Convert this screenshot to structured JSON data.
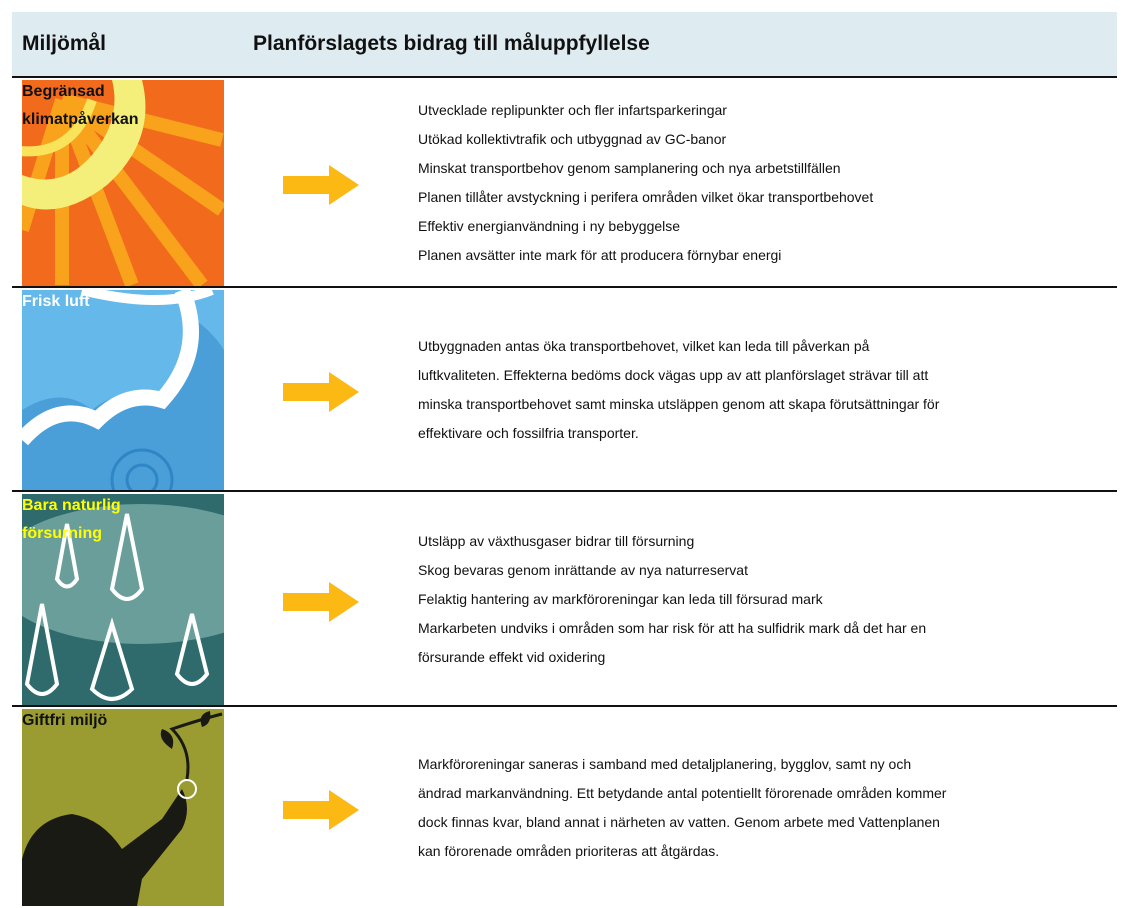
{
  "header": {
    "col1": "Miljömål",
    "col2": "Planförslagets bidrag till måluppfyllelse"
  },
  "rows": [
    {
      "goal": "Begränsad klimatpåverkan",
      "lines": [
        "Utvecklade replipunkter och fler infartsparkeringar",
        "Utökad kollektivtrafik och utbyggnad av GC-banor",
        "Minskat transportbehov genom samplanering och nya arbetstillfällen",
        "Planen tillåter avstyckning i perifera områden vilket ökar transportbehovet",
        "Effektiv energianvändning i ny bebyggelse",
        "Planen avsätter inte mark för att producera förnybar energi"
      ]
    },
    {
      "goal": "Frisk luft",
      "lines": [
        "Utbyggnaden antas öka transportbehovet, vilket kan leda till påverkan på",
        "luftkvaliteten. Effekterna bedöms dock vägas upp av att planförslaget strävar till att",
        "minska transportbehovet samt minska utsläppen genom att skapa förutsättningar för",
        "effektivare och fossilfria transporter."
      ]
    },
    {
      "goal": "Bara naturlig försurning",
      "lines": [
        "Utsläpp av växthusgaser bidrar till försurning",
        "Skog bevaras genom inrättande av nya naturreservat",
        "Felaktig hantering av markföroreningar kan leda till försurad mark",
        "Markarbeten undviks i områden som har risk för att ha sulfidrik mark då det har en",
        "försurande effekt vid oxidering"
      ]
    },
    {
      "goal": "Giftfri miljö",
      "lines": [
        "Markföroreningar saneras i samband med detaljplanering, bygglov, samt ny och",
        "ändrad markanvändning. Ett betydande antal potentiellt förorenade områden kommer",
        "dock finnas kvar, bland annat i närheten av vatten. Genom arbete med Vattenplanen",
        "kan förorenade områden prioriteras att åtgärdas."
      ]
    }
  ]
}
